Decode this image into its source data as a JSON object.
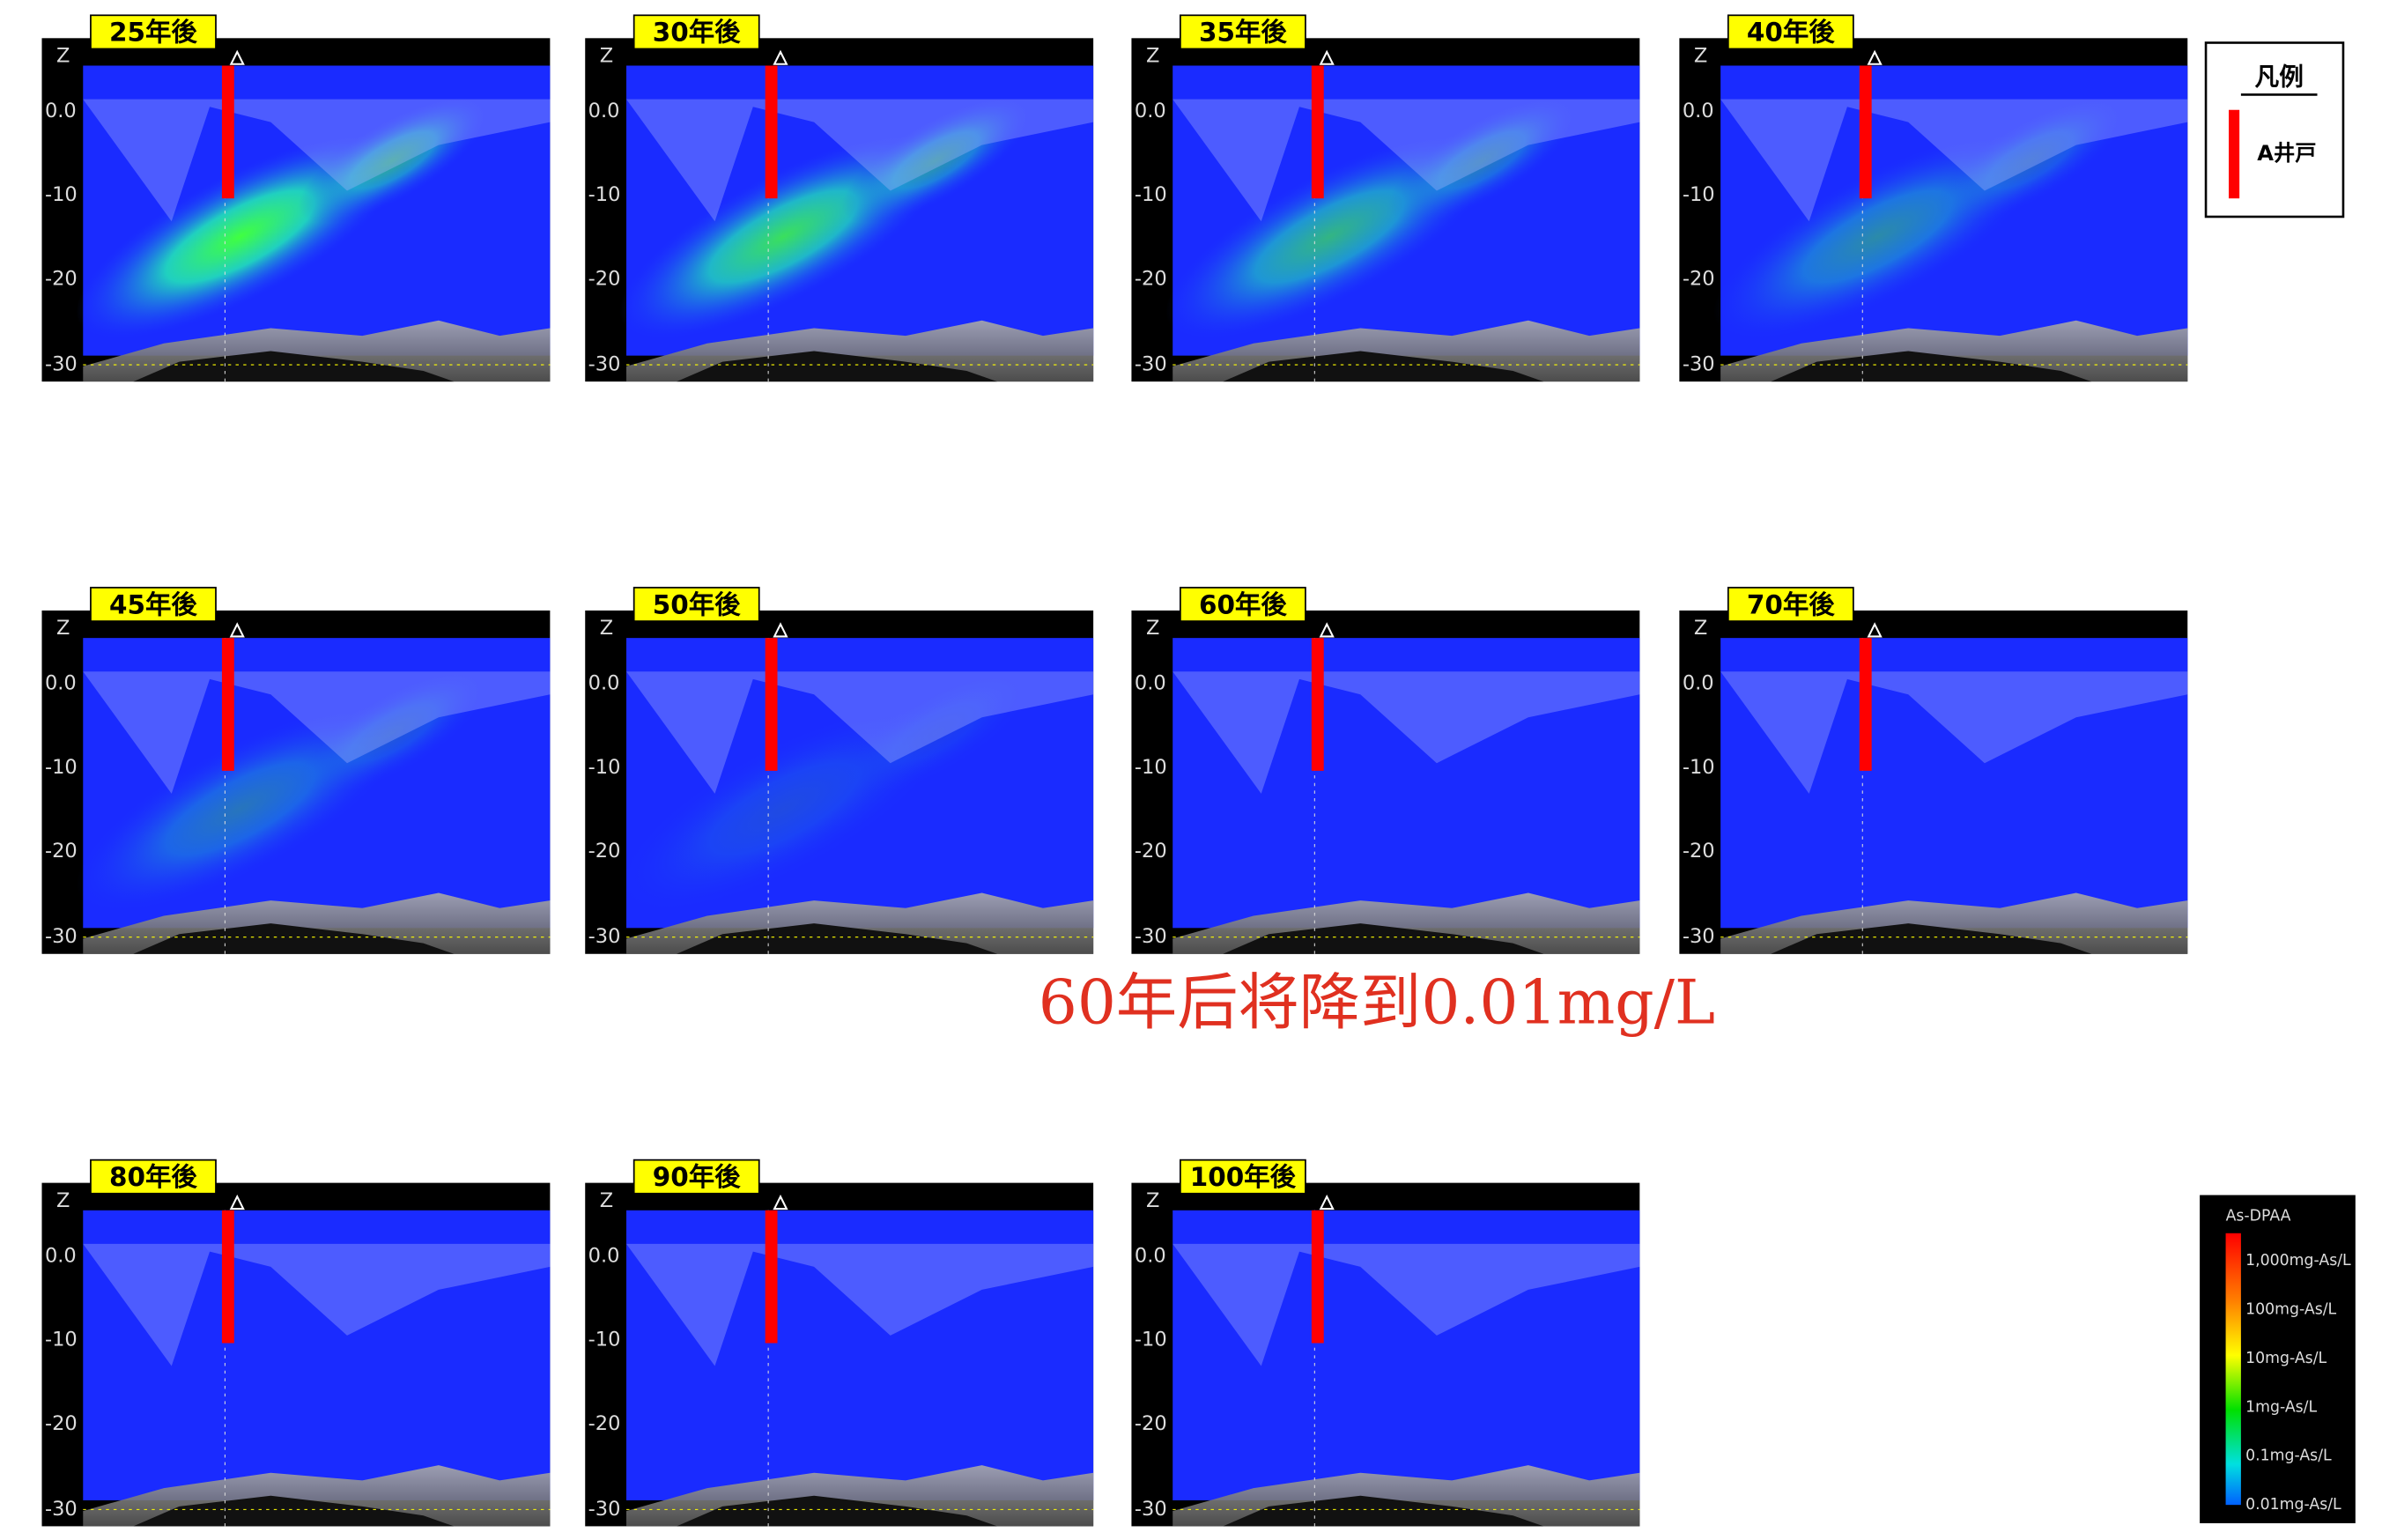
{
  "panels": [
    {
      "label": "25年後"
    },
    {
      "label": "30年後"
    },
    {
      "label": "35年後"
    },
    {
      "label": "40年後"
    },
    {
      "label": "45年後"
    },
    {
      "label": "50年後"
    },
    {
      "label": "60年後"
    },
    {
      "label": "70年後"
    },
    {
      "label": "80年後"
    },
    {
      "label": "90年後"
    },
    {
      "label": "100年後"
    }
  ],
  "axis": {
    "label": "Z",
    "ticks": [
      "0.0",
      "-10",
      "-20",
      "-30"
    ]
  },
  "legend": {
    "title": "凡例",
    "item": "A井戸"
  },
  "annotation": "60年后将降到0.01mg/L",
  "colorbar": {
    "title": "As-DPAA",
    "labels": [
      "1,000mg-As/L",
      "100mg-As/L",
      "10mg-As/L",
      "1mg-As/L",
      "0.1mg-As/L",
      "0.01mg-As/L"
    ]
  }
}
